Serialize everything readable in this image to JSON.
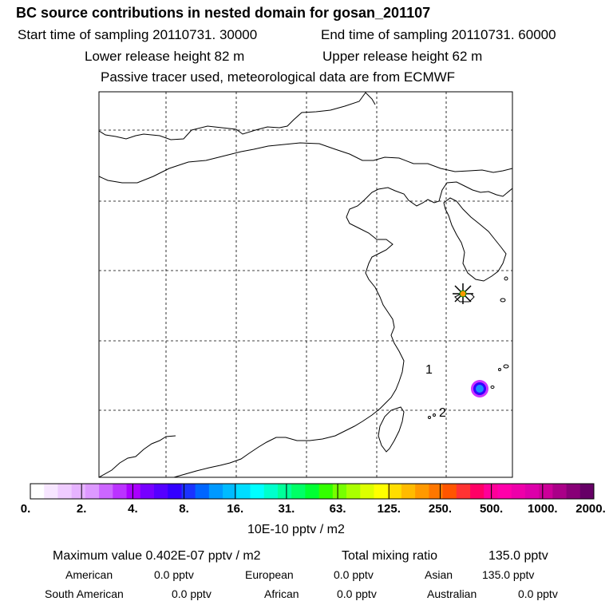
{
  "header": {
    "title": "BC  source contributions in nested domain for gosan_201107",
    "start_label": "Start time of sampling 20110731. 30000",
    "end_label": "End time of sampling 20110731. 60000",
    "lower_label": "Lower release height   82 m",
    "upper_label": "Upper release height   62 m",
    "tracer_note": "Passive tracer used, meteorological data are from ECMWF"
  },
  "map": {
    "labels": [
      "1",
      "2"
    ],
    "receptor_marker": "star-burst-icon",
    "hotspot_color": "#1a8cff"
  },
  "colorbar": {
    "colors": [
      "#ffffff",
      "#f7e6ff",
      "#efccff",
      "#e6b3ff",
      "#dd99ff",
      "#cc66ff",
      "#bb33ff",
      "#aa00ff",
      "#7700ff",
      "#5500ff",
      "#3300ff",
      "#1a33ff",
      "#0066ff",
      "#0099ff",
      "#00bbff",
      "#00ddff",
      "#00ffff",
      "#00ffcc",
      "#00ff99",
      "#00ff66",
      "#00ff33",
      "#33ff00",
      "#77ff00",
      "#aaff00",
      "#ddff00",
      "#ffff00",
      "#ffdd00",
      "#ffbb00",
      "#ff9900",
      "#ff7700",
      "#ff5500",
      "#ff3333",
      "#ff0066",
      "#ff0099",
      "#ff00aa",
      "#ee00aa",
      "#dd00aa",
      "#cc0099",
      "#aa0088",
      "#880077",
      "#660066"
    ],
    "ticks": [
      "0.",
      "2.",
      "4.",
      "8.",
      "16.",
      "31.",
      "63.",
      "125.",
      "250.",
      "500.",
      "1000.",
      "2000."
    ],
    "units": "10E-10 pptv / m2"
  },
  "summary": {
    "max_label": "Maximum value  0.402E-07 pptv / m2",
    "total_label": "Total mixing ratio",
    "total_value": "135.0 pptv",
    "regions": [
      {
        "name": "American",
        "value": "0.0 pptv"
      },
      {
        "name": "European",
        "value": "0.0 pptv"
      },
      {
        "name": "Asian",
        "value": "135.0 pptv"
      },
      {
        "name": "South American",
        "value": "0.0 pptv"
      },
      {
        "name": "African",
        "value": "0.0 pptv"
      },
      {
        "name": "Australian",
        "value": "0.0 pptv"
      }
    ]
  }
}
